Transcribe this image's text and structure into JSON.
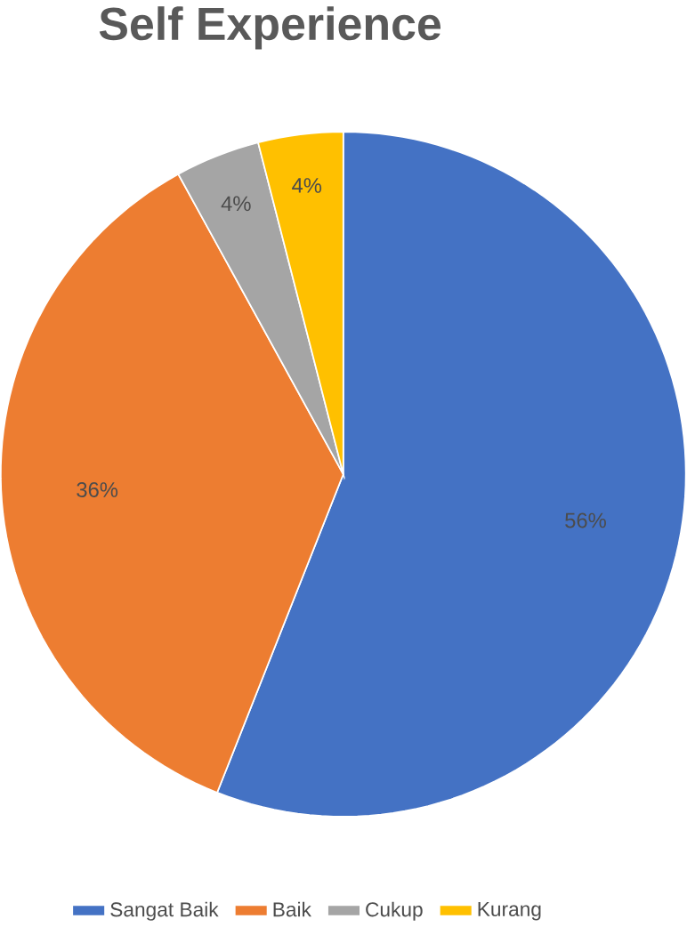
{
  "chart_data": {
    "type": "pie",
    "title": "Self Experience",
    "categories": [
      "Sangat Baik",
      "Baik",
      "Cukup",
      "Kurang"
    ],
    "values": [
      56,
      36,
      4,
      4
    ],
    "colors": [
      "#4472c4",
      "#ed7d31",
      "#a5a5a5",
      "#ffc000"
    ],
    "value_labels": [
      "56%",
      "36%",
      "4%",
      "4%"
    ],
    "legend": "bottom"
  }
}
